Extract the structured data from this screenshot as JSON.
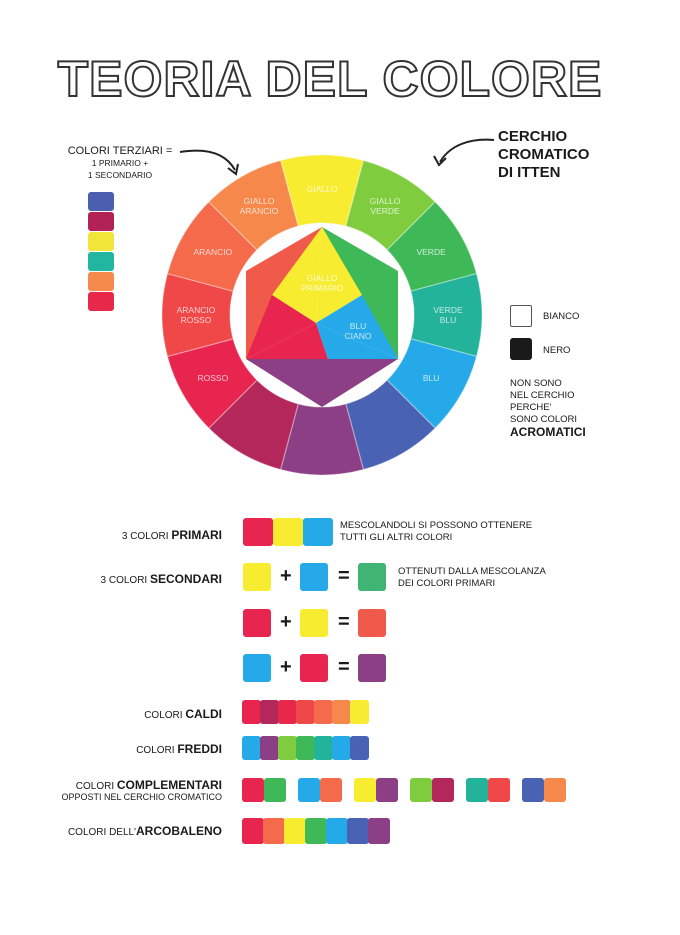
{
  "title": "TEORIA DEL COLORE",
  "tertiary_note": {
    "line1": "COLORI TERZIARI =",
    "line2": "1 PRIMARIO +",
    "line3": "1 SECONDARIO",
    "strip_colors": [
      "#4b5fb0",
      "#b32255",
      "#f2e53a",
      "#22b5a0",
      "#f58a4c",
      "#e8284a"
    ]
  },
  "wheel_note": {
    "line1": "CERCHIO",
    "line2": "CROMATICO",
    "line3": "DI ITTEN"
  },
  "wheel": {
    "segments": [
      {
        "label": "GIALLO",
        "label2": "",
        "color": "#f7ec2f"
      },
      {
        "label": "GIALLO",
        "label2": "VERDE",
        "color": "#7fcd3f"
      },
      {
        "label": "VERDE",
        "label2": "",
        "color": "#3fb958"
      },
      {
        "label": "VERDE",
        "label2": "BLU",
        "color": "#22b39a"
      },
      {
        "label": "BLU",
        "label2": "",
        "color": "#25a9e8"
      },
      {
        "label": "",
        "label2": "",
        "color": "#4a62b4"
      },
      {
        "label": "",
        "label2": "",
        "color": "#8c3f84"
      },
      {
        "label": "",
        "label2": "",
        "color": "#b3275a"
      },
      {
        "label": "ROSSO",
        "label2": "",
        "color": "#e8254e"
      },
      {
        "label": "ARANCIO",
        "label2": "ROSSO",
        "color": "#f04848"
      },
      {
        "label": "ARANCIO",
        "label2": "",
        "color": "#f46a4b"
      },
      {
        "label": "GIALLO",
        "label2": "ARANCIO",
        "color": "#f7884c"
      }
    ],
    "center": {
      "primary_label1": "GIALLO",
      "primary_label2": "PRIMARIO",
      "ciano_label1": "BLU",
      "ciano_label2": "CIANO",
      "yellow": "#f7ec2f",
      "red": "#e8254e",
      "blue": "#25a9e8",
      "green": "#3fb958",
      "orange": "#f05a4a",
      "purple": "#8c3f84"
    }
  },
  "achromatic": {
    "white_label": "BIANCO",
    "black_label": "NERO",
    "line1": "NON SONO",
    "line2": "NEL CERCHIO",
    "line3": "PERCHE'",
    "line4": "SONO COLORI",
    "line5": "ACROMATICI"
  },
  "rows": {
    "primari": {
      "pre": "3 COLORI ",
      "bold": "PRIMARI",
      "desc1": "MESCOLANDOLI SI POSSONO OTTENERE",
      "desc2": "TUTTI GLI ALTRI COLORI",
      "colors": [
        "#e8254e",
        "#f7ec2f",
        "#25a9e8"
      ]
    },
    "secondari": {
      "pre": "3 COLORI ",
      "bold": "SECONDARI",
      "desc1": "OTTENUTI DALLA MESCOLANZA",
      "desc2": "DEI COLORI PRIMARI",
      "plus": "+",
      "equals": "=",
      "eq1": [
        "#f7ec2f",
        "#25a9e8",
        "#3fb473"
      ],
      "eq2": [
        "#e8254e",
        "#f7ec2f",
        "#f05a4a"
      ],
      "eq3": [
        "#25a9e8",
        "#e8254e",
        "#8c3f84"
      ]
    },
    "caldi": {
      "pre": "COLORI ",
      "bold": "CALDI",
      "colors": [
        "#e8254e",
        "#b3275a",
        "#e8284a",
        "#f04848",
        "#f46a4b",
        "#f7884c",
        "#f7ec2f"
      ]
    },
    "freddi": {
      "pre": "COLORI ",
      "bold": "FREDDI",
      "colors": [
        "#25a9e8",
        "#8c3f84",
        "#7fcd3f",
        "#3fb958",
        "#22b39a",
        "#25a9e8",
        "#4a62b4"
      ]
    },
    "complementari": {
      "pre": "COLORI ",
      "bold": "COMPLEMENTARI",
      "sub": "OPPOSTI NEL CERCHIO CROMATICO",
      "pairs": [
        [
          "#e8254e",
          "#3fb958"
        ],
        [
          "#25a9e8",
          "#f46a4b"
        ],
        [
          "#f7ec2f",
          "#8c3f84"
        ],
        [
          "#7fcd3f",
          "#b3275a"
        ],
        [
          "#22b39a",
          "#f04848"
        ],
        [
          "#4a62b4",
          "#f7884c"
        ]
      ]
    },
    "arcobaleno": {
      "pre": "COLORI DELL'",
      "bold": "ARCOBALENO",
      "colors": [
        "#e8254e",
        "#f46a4b",
        "#f7ec2f",
        "#3fb958",
        "#25a9e8",
        "#4a62b4",
        "#8c3f84"
      ]
    }
  }
}
